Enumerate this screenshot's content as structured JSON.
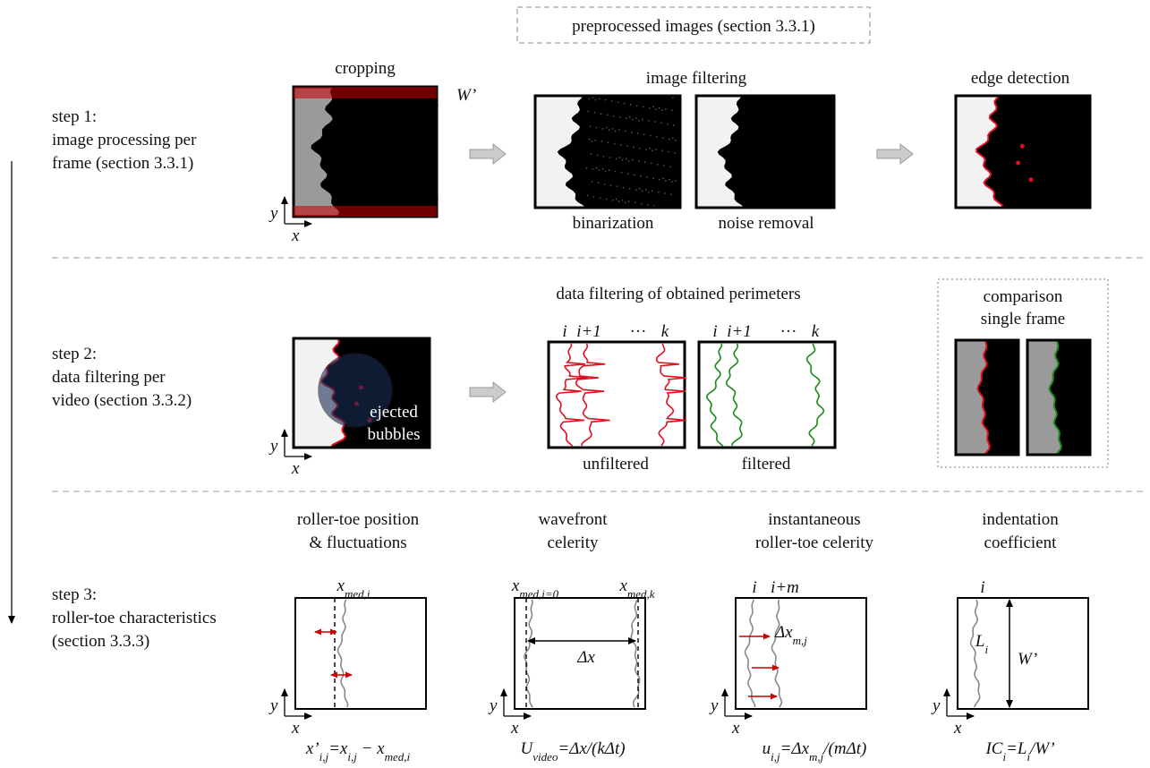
{
  "header": {
    "label": "preprocessed images (section 3.3.1)"
  },
  "steps": [
    {
      "lines": [
        "step 1:",
        "image processing per",
        "frame (section 3.3.1)"
      ]
    },
    {
      "lines": [
        "step 2:",
        "data filtering per",
        "video (section 3.3.2)"
      ]
    },
    {
      "lines": [
        "step 3:",
        "roller-toe characteristics",
        "(section 3.3.3)"
      ]
    }
  ],
  "step1": {
    "cropping": {
      "title": "cropping",
      "dimension": "W’",
      "axis": [
        "y",
        "x"
      ]
    },
    "filtering": {
      "title": "image filtering",
      "left": "binarization",
      "right": "noise removal"
    },
    "edge": {
      "title": "edge detection"
    }
  },
  "step2": {
    "ejected": [
      "ejected",
      "bubbles"
    ],
    "axis": [
      "y",
      "x"
    ],
    "filtering": {
      "title": "data filtering of obtained perimeters",
      "perimeter_labels": [
        "i",
        "i+1",
        "···",
        "k"
      ],
      "left": "unfiltered",
      "right": "filtered"
    },
    "comparison": [
      "comparison",
      "single frame"
    ]
  },
  "step3": {
    "panels": [
      {
        "title": [
          "roller-toe position",
          "& fluctuations"
        ],
        "axis": [
          "y",
          "x"
        ],
        "labels": [
          [
            {
              "text": "x",
              "sub": "med,i"
            }
          ]
        ],
        "formula": [
          {
            "text": "x’",
            "sub": "i,j"
          },
          {
            "text": "=x",
            "sub": "i,j"
          },
          {
            "text": " − x",
            "sub": "med,i"
          }
        ]
      },
      {
        "title": [
          "wavefront",
          "celerity"
        ],
        "axis": [
          "y",
          "x"
        ],
        "labels": [
          [
            {
              "text": "x",
              "sub": "med,i=0"
            }
          ],
          [
            {
              "text": "x",
              "sub": "med,k"
            }
          ],
          [
            {
              "text": "Δx"
            }
          ]
        ],
        "formula": [
          {
            "text": "U",
            "sub": "video"
          },
          {
            "text": "=Δx/(kΔt)"
          }
        ]
      },
      {
        "title": [
          "instantaneous",
          "roller-toe celerity"
        ],
        "axis": [
          "y",
          "x"
        ],
        "labels": [
          [
            {
              "text": "i"
            }
          ],
          [
            {
              "text": "i+m"
            }
          ],
          [
            {
              "text": "Δx",
              "sub": "m,j"
            }
          ]
        ],
        "formula": [
          {
            "text": "u",
            "sub": "i,j"
          },
          {
            "text": "=Δx",
            "sub": "m,j"
          },
          {
            "text": "/(mΔt)"
          }
        ]
      },
      {
        "title": [
          "indentation",
          "coefficient"
        ],
        "axis": [
          "y",
          "x"
        ],
        "labels": [
          [
            {
              "text": "i"
            }
          ],
          [
            {
              "text": "L",
              "sub": "i"
            }
          ],
          [
            {
              "text": "W’"
            }
          ]
        ],
        "formula": [
          {
            "text": "IC",
            "sub": "i"
          },
          {
            "text": "=L",
            "sub": "i"
          },
          {
            "text": "/W’"
          }
        ]
      }
    ]
  }
}
